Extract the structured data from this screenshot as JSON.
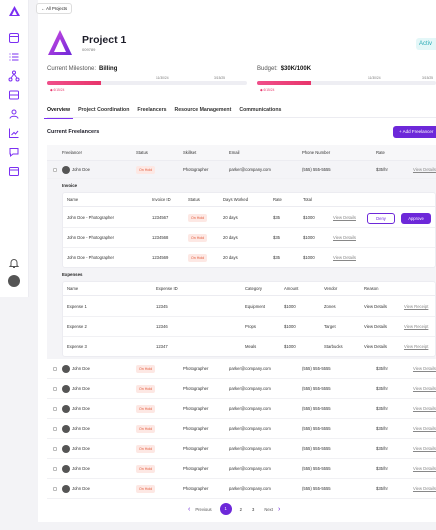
{
  "nav": {
    "back_label": "All Projects"
  },
  "sidebar": {
    "icons": [
      "dashboard-icon",
      "list-icon",
      "network-icon",
      "inbox-icon",
      "users-icon",
      "chart-icon",
      "chat-icon",
      "calendar-icon",
      "bell-icon"
    ]
  },
  "project": {
    "title": "Project 1",
    "id": "009789",
    "status": "Activ"
  },
  "milestone": {
    "label": "Current Milestone:",
    "value": "Billing",
    "start": "6/15/24",
    "date1": "11/30/24",
    "date2": "3/15/25",
    "progress": 0.27
  },
  "budget": {
    "label": "Budget:",
    "value": "$30K/100K",
    "start": "6/15/24",
    "date1": "11/30/24",
    "date2": "3/15/25",
    "progress": 0.3
  },
  "tabs": [
    "Overview",
    "Project Coordination",
    "Freelancers",
    "Resource Management",
    "Communications"
  ],
  "freelancers": {
    "title": "Current Freelancers",
    "add_label": "+ Add Freelancer",
    "columns": [
      "Freelancer",
      "Status",
      "Skillset",
      "Email",
      "Phone Number",
      "Rate"
    ],
    "rows": [
      {
        "name": "John Doe",
        "status": "On Hold",
        "skill": "Photographer",
        "email": "parker@company.com",
        "phone": "(555) 555-5555",
        "rate": "$35/hr",
        "action": "View Details"
      },
      {
        "name": "John Doe",
        "status": "On Hold",
        "skill": "Photographer",
        "email": "parker@company.com",
        "phone": "(555) 555-5555",
        "rate": "$35/hr",
        "action": "View Details"
      },
      {
        "name": "John Doe",
        "status": "On Hold",
        "skill": "Photographer",
        "email": "parker@company.com",
        "phone": "(555) 555-5555",
        "rate": "$35/hr",
        "action": "View Details"
      },
      {
        "name": "John Doe",
        "status": "On Hold",
        "skill": "Photographer",
        "email": "parker@company.com",
        "phone": "(555) 555-5555",
        "rate": "$35/hr",
        "action": "View Details"
      },
      {
        "name": "John Doe",
        "status": "On Hold",
        "skill": "Photographer",
        "email": "parker@company.com",
        "phone": "(555) 555-5555",
        "rate": "$35/hr",
        "action": "View Details"
      },
      {
        "name": "John Doe",
        "status": "On Hold",
        "skill": "Photographer",
        "email": "parker@company.com",
        "phone": "(555) 555-5555",
        "rate": "$35/hr",
        "action": "View Details"
      },
      {
        "name": "John Doe",
        "status": "On Hold",
        "skill": "Photographer",
        "email": "parker@company.com",
        "phone": "(555) 555-5555",
        "rate": "$35/hr",
        "action": "View Details"
      },
      {
        "name": "John Doe",
        "status": "On Hold",
        "skill": "Photographer",
        "email": "parker@company.com",
        "phone": "(555) 555-5555",
        "rate": "$35/hr",
        "action": "View Details"
      }
    ]
  },
  "invoice": {
    "label": "Invoice",
    "columns": [
      "Name",
      "Invoice ID",
      "Status",
      "Days Worked",
      "Rate",
      "Total"
    ],
    "rows": [
      {
        "name": "John Doe - Photographer",
        "id": "1234567",
        "status": "On Hold",
        "days": "20 days",
        "rate": "$35",
        "total": "$1000",
        "action": "View Details"
      },
      {
        "name": "John Doe - Photographer",
        "id": "1234568",
        "status": "On Hold",
        "days": "20 days",
        "rate": "$35",
        "total": "$1000",
        "action": "View Details"
      },
      {
        "name": "John Doe - Photographer",
        "id": "1234569",
        "status": "On Hold",
        "days": "20 days",
        "rate": "$35",
        "total": "$1000",
        "action": "View Details"
      }
    ],
    "deny_label": "Deny",
    "approve_label": "Approve"
  },
  "expenses": {
    "label": "Expenses",
    "columns": [
      "Name",
      "Expense ID",
      "Category",
      "Amount",
      "Vendor",
      "Reason"
    ],
    "rows": [
      {
        "name": "Expense 1",
        "id": "12345",
        "category": "Equipment",
        "amount": "$1000",
        "vendor": "Zones",
        "reason": "View Details",
        "receipt": "View Receipt"
      },
      {
        "name": "Expense 2",
        "id": "12346",
        "category": "Props",
        "amount": "$1000",
        "vendor": "Target",
        "reason": "View Details",
        "receipt": "View Receipt"
      },
      {
        "name": "Expense 3",
        "id": "12347",
        "category": "Meals",
        "amount": "$1000",
        "vendor": "Starbucks",
        "reason": "View Details",
        "receipt": "View Receipt"
      }
    ]
  },
  "pagination": {
    "prev": "Previous",
    "pages": [
      "1",
      "2",
      "3"
    ],
    "next": "Next",
    "current": "1"
  },
  "colors": {
    "accent": "#6d28d9",
    "progress": "#e8356b",
    "status_hold_bg": "#fde8e4",
    "status_hold_fg": "#e25a3a"
  }
}
